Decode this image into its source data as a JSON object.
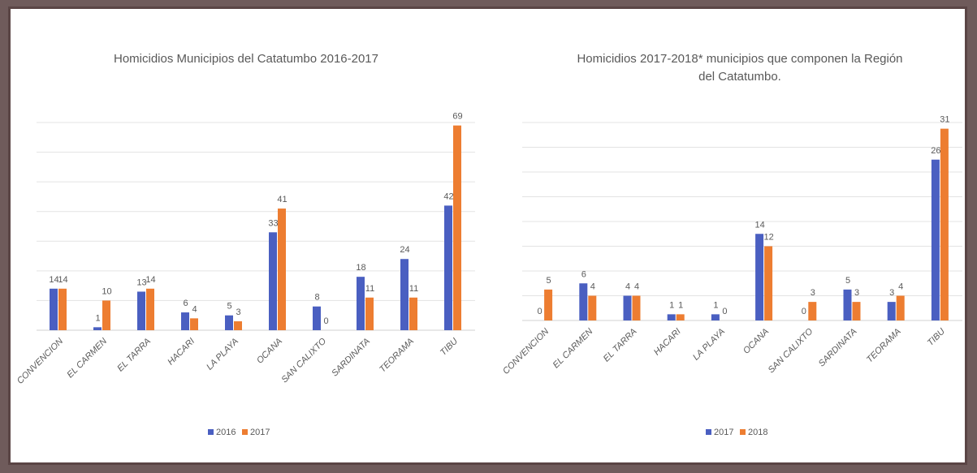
{
  "colors": {
    "s1": "#4a5fc1",
    "s2": "#ed7d31"
  },
  "chart_data": [
    {
      "type": "bar",
      "title": "Homicidios Municipios del Catatumbo 2016-2017",
      "title_lines": [
        "Homicidios Municipios del Catatumbo 2016-2017"
      ],
      "categories": [
        "CONVENCION",
        "EL CARMEN",
        "EL TARRA",
        "HACARI",
        "LA PLAYA",
        "OCANA",
        "SAN CALIXTO",
        "SARDINATA",
        "TEORAMA",
        "TIBU"
      ],
      "series": [
        {
          "name": "2016",
          "values": [
            14,
            1,
            13,
            6,
            5,
            33,
            8,
            18,
            24,
            42
          ]
        },
        {
          "name": "2017",
          "values": [
            14,
            10,
            14,
            4,
            3,
            41,
            0,
            11,
            11,
            69
          ]
        }
      ],
      "ylim": [
        0,
        70
      ],
      "grid": true,
      "legend": "bottom"
    },
    {
      "type": "bar",
      "title": "Homicidios 2017-2018* municipios que componen la Región del Catatumbo.",
      "title_lines": [
        "Homicidios 2017-2018* municipios que componen la Región",
        "del Catatumbo."
      ],
      "categories": [
        "CONVENCION",
        "EL CARMEN",
        "EL TARRA",
        "HACARI",
        "LA PLAYA",
        "OCANA",
        "SAN CALIXTO",
        "SARDINATA",
        "TEORAMA",
        "TIBU"
      ],
      "series": [
        {
          "name": "2017",
          "values": [
            0,
            6,
            4,
            1,
            1,
            14,
            0,
            5,
            3,
            26
          ]
        },
        {
          "name": "2018",
          "values": [
            5,
            4,
            4,
            1,
            0,
            12,
            3,
            3,
            4,
            31
          ]
        }
      ],
      "ylim": [
        0,
        32
      ],
      "grid": true,
      "legend": "bottom"
    }
  ]
}
